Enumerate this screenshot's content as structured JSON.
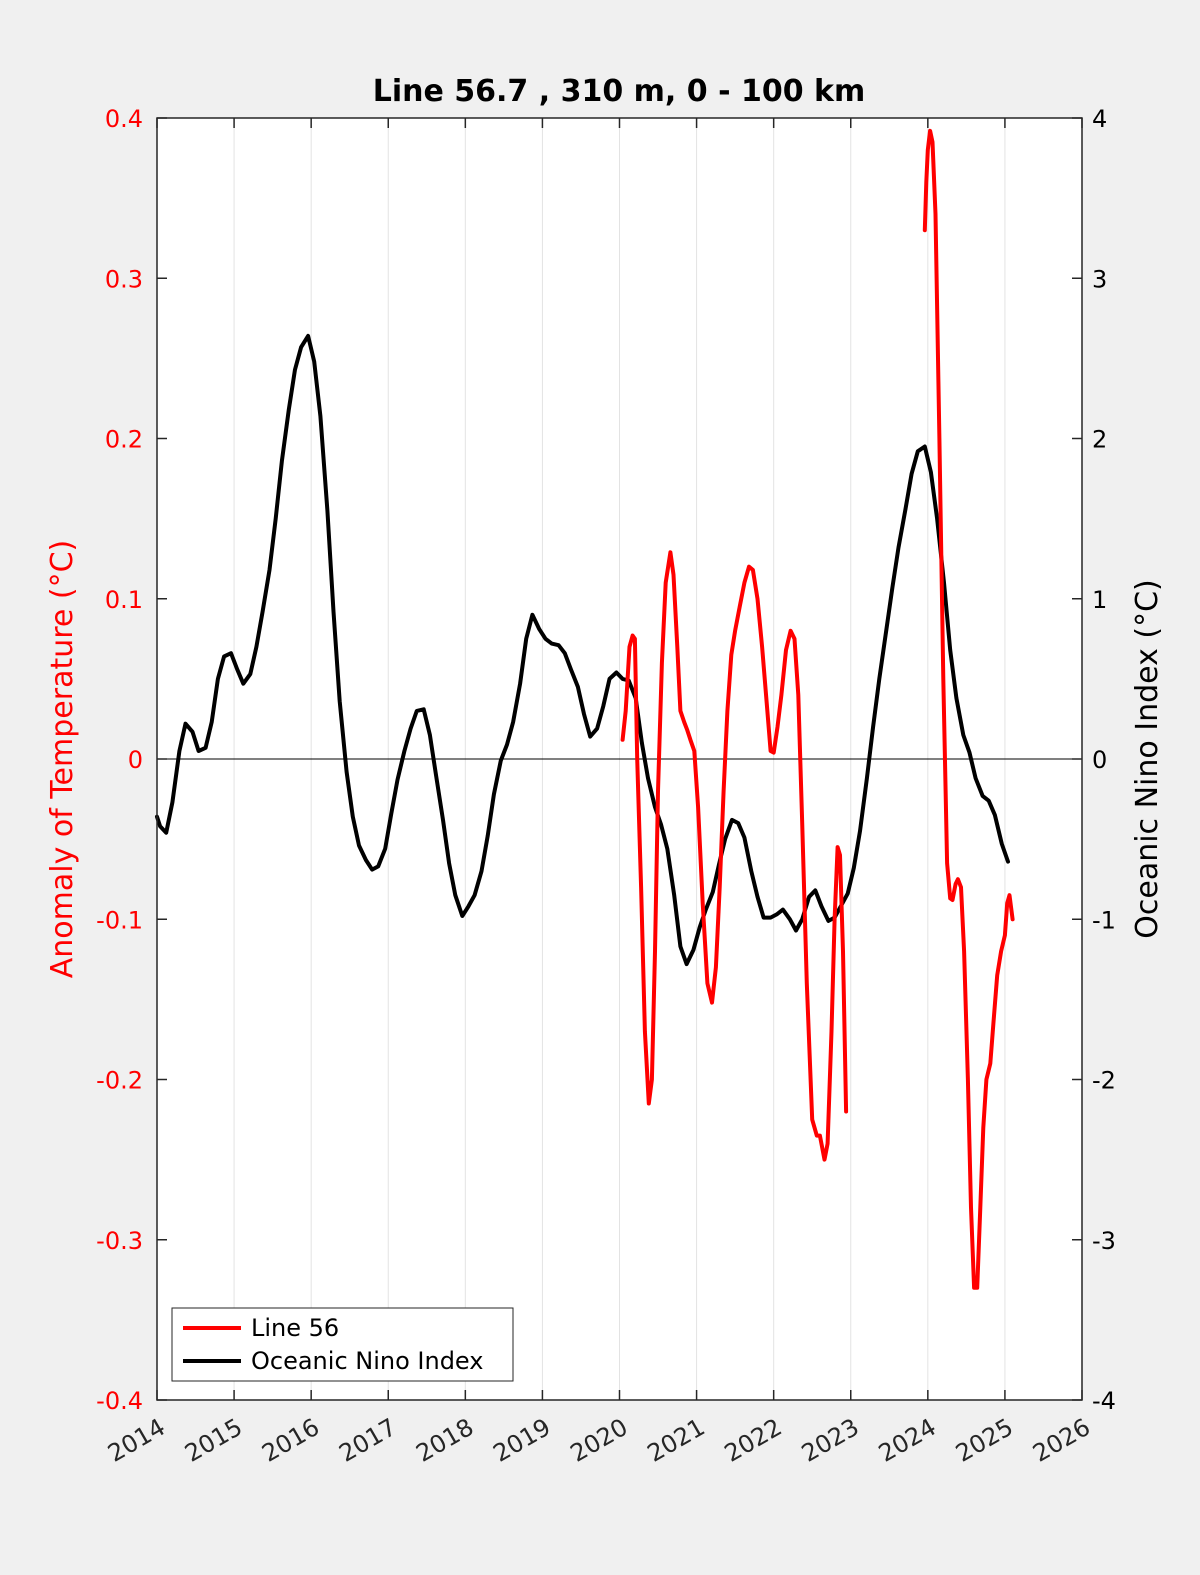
{
  "colors": {
    "background": "#f0f0f0",
    "plot_bg": "#ffffff",
    "line56": "#ff0000",
    "oni": "#000000",
    "left_axis": "#ff0000",
    "right_axis": "#000000",
    "grid": "#e3e3e3"
  },
  "chart_data": {
    "type": "line",
    "title": "Line 56.7 , 310 m, 0 - 100 km",
    "ylabel": "Anomaly of Temperature (°C)",
    "ylabel_right": "Oceanic Nino Index (°C)",
    "xlim": [
      2014,
      2026
    ],
    "ylim": [
      -0.4,
      0.4
    ],
    "ylim_right": [
      -4,
      4
    ],
    "x_ticks": [
      2014,
      2015,
      2016,
      2017,
      2018,
      2019,
      2020,
      2021,
      2022,
      2023,
      2024,
      2025,
      2026
    ],
    "x_tick_labels": [
      "2014",
      "2015",
      "2016",
      "2017",
      "2018",
      "2019",
      "2020",
      "2021",
      "2022",
      "2023",
      "2024",
      "2025",
      "2026"
    ],
    "y_tick_labels": [
      "0.4",
      "0.3",
      "0.2",
      "0.1",
      "0",
      "-0.1",
      "-0.2",
      "-0.3",
      "-0.4"
    ],
    "y_ticks": [
      0.4,
      0.3,
      0.2,
      0.1,
      0,
      -0.1,
      -0.2,
      -0.3,
      -0.4
    ],
    "y_right_tick_labels": [
      "4",
      "3",
      "2",
      "1",
      "0",
      "-1",
      "-2",
      "-3",
      "-4"
    ],
    "y_right_ticks": [
      4,
      3,
      2,
      1,
      0,
      -1,
      -2,
      -3,
      -4
    ],
    "grid": "vertical",
    "zero_line": true,
    "legend_position": "bottom-left",
    "series": [
      {
        "name": "Line 56",
        "axis": "left",
        "color": "#ff0000",
        "segments": [
          [
            [
              2020.04,
              0.012
            ],
            [
              2020.08,
              0.03
            ],
            [
              2020.13,
              0.07
            ],
            [
              2020.17,
              0.077
            ],
            [
              2020.2,
              0.075
            ],
            [
              2020.23,
              0.0
            ],
            [
              2020.28,
              -0.08
            ],
            [
              2020.33,
              -0.17
            ],
            [
              2020.38,
              -0.215
            ],
            [
              2020.42,
              -0.2
            ],
            [
              2020.46,
              -0.12
            ],
            [
              2020.5,
              -0.02
            ],
            [
              2020.55,
              0.06
            ],
            [
              2020.6,
              0.11
            ],
            [
              2020.66,
              0.129
            ],
            [
              2020.7,
              0.115
            ],
            [
              2020.75,
              0.07
            ],
            [
              2020.79,
              0.03
            ],
            [
              2020.84,
              0.023
            ],
            [
              2020.88,
              0.018
            ],
            [
              2020.92,
              0.012
            ],
            [
              2020.97,
              0.005
            ],
            [
              2021.02,
              -0.03
            ],
            [
              2021.08,
              -0.09
            ],
            [
              2021.14,
              -0.14
            ],
            [
              2021.2,
              -0.152
            ],
            [
              2021.25,
              -0.13
            ],
            [
              2021.3,
              -0.08
            ],
            [
              2021.35,
              -0.02
            ],
            [
              2021.4,
              0.03
            ],
            [
              2021.45,
              0.065
            ],
            [
              2021.5,
              0.08
            ],
            [
              2021.56,
              0.095
            ],
            [
              2021.62,
              0.11
            ],
            [
              2021.68,
              0.12
            ],
            [
              2021.73,
              0.118
            ],
            [
              2021.79,
              0.1
            ],
            [
              2021.85,
              0.07
            ],
            [
              2021.91,
              0.035
            ],
            [
              2021.96,
              0.005
            ],
            [
              2022.0,
              0.004
            ],
            [
              2022.05,
              0.02
            ],
            [
              2022.1,
              0.04
            ],
            [
              2022.16,
              0.068
            ],
            [
              2022.22,
              0.08
            ],
            [
              2022.27,
              0.075
            ],
            [
              2022.32,
              0.04
            ],
            [
              2022.37,
              -0.04
            ],
            [
              2022.43,
              -0.14
            ],
            [
              2022.5,
              -0.225
            ],
            [
              2022.56,
              -0.235
            ],
            [
              2022.6,
              -0.235
            ],
            [
              2022.66,
              -0.25
            ],
            [
              2022.7,
              -0.24
            ],
            [
              2022.75,
              -0.17
            ],
            [
              2022.79,
              -0.1
            ],
            [
              2022.83,
              -0.055
            ],
            [
              2022.86,
              -0.06
            ],
            [
              2022.9,
              -0.12
            ],
            [
              2022.94,
              -0.22
            ]
          ],
          [
            [
              2023.96,
              0.33
            ],
            [
              2023.98,
              0.36
            ],
            [
              2024.0,
              0.38
            ],
            [
              2024.03,
              0.392
            ],
            [
              2024.06,
              0.385
            ],
            [
              2024.1,
              0.34
            ],
            [
              2024.15,
              0.2
            ],
            [
              2024.2,
              0.05
            ],
            [
              2024.25,
              -0.065
            ],
            [
              2024.29,
              -0.087
            ],
            [
              2024.32,
              -0.088
            ],
            [
              2024.36,
              -0.078
            ],
            [
              2024.39,
              -0.075
            ],
            [
              2024.43,
              -0.08
            ],
            [
              2024.47,
              -0.12
            ],
            [
              2024.52,
              -0.2
            ],
            [
              2024.56,
              -0.28
            ],
            [
              2024.6,
              -0.33
            ],
            [
              2024.64,
              -0.33
            ],
            [
              2024.68,
              -0.28
            ],
            [
              2024.72,
              -0.23
            ],
            [
              2024.76,
              -0.2
            ],
            [
              2024.81,
              -0.19
            ],
            [
              2024.85,
              -0.165
            ],
            [
              2024.9,
              -0.135
            ],
            [
              2024.95,
              -0.12
            ],
            [
              2025.0,
              -0.11
            ],
            [
              2025.03,
              -0.09
            ],
            [
              2025.06,
              -0.085
            ],
            [
              2025.1,
              -0.1
            ]
          ]
        ]
      },
      {
        "name": "Oceanic Nino Index",
        "axis": "right",
        "color": "#000000",
        "segments": [
          [
            [
              2014.0,
              -0.36
            ],
            [
              2014.04,
              -0.42
            ],
            [
              2014.12,
              -0.46
            ],
            [
              2014.2,
              -0.27
            ],
            [
              2014.29,
              0.05
            ],
            [
              2014.37,
              0.22
            ],
            [
              2014.46,
              0.17
            ],
            [
              2014.54,
              0.05
            ],
            [
              2014.63,
              0.07
            ],
            [
              2014.71,
              0.23
            ],
            [
              2014.79,
              0.5
            ],
            [
              2014.87,
              0.64
            ],
            [
              2014.96,
              0.66
            ],
            [
              2015.04,
              0.56
            ],
            [
              2015.12,
              0.47
            ],
            [
              2015.21,
              0.53
            ],
            [
              2015.29,
              0.7
            ],
            [
              2015.37,
              0.92
            ],
            [
              2015.46,
              1.18
            ],
            [
              2015.54,
              1.5
            ],
            [
              2015.62,
              1.86
            ],
            [
              2015.71,
              2.18
            ],
            [
              2015.79,
              2.43
            ],
            [
              2015.87,
              2.57
            ],
            [
              2015.96,
              2.64
            ],
            [
              2016.04,
              2.48
            ],
            [
              2016.12,
              2.14
            ],
            [
              2016.21,
              1.55
            ],
            [
              2016.29,
              0.92
            ],
            [
              2016.37,
              0.36
            ],
            [
              2016.46,
              -0.08
            ],
            [
              2016.54,
              -0.36
            ],
            [
              2016.62,
              -0.54
            ],
            [
              2016.71,
              -0.63
            ],
            [
              2016.79,
              -0.69
            ],
            [
              2016.87,
              -0.67
            ],
            [
              2016.96,
              -0.56
            ],
            [
              2017.04,
              -0.34
            ],
            [
              2017.12,
              -0.13
            ],
            [
              2017.21,
              0.05
            ],
            [
              2017.29,
              0.19
            ],
            [
              2017.37,
              0.3
            ],
            [
              2017.46,
              0.31
            ],
            [
              2017.54,
              0.15
            ],
            [
              2017.62,
              -0.1
            ],
            [
              2017.71,
              -0.38
            ],
            [
              2017.79,
              -0.65
            ],
            [
              2017.87,
              -0.85
            ],
            [
              2017.96,
              -0.98
            ],
            [
              2018.04,
              -0.92
            ],
            [
              2018.12,
              -0.85
            ],
            [
              2018.21,
              -0.7
            ],
            [
              2018.29,
              -0.48
            ],
            [
              2018.37,
              -0.22
            ],
            [
              2018.46,
              -0.01
            ],
            [
              2018.54,
              0.09
            ],
            [
              2018.62,
              0.23
            ],
            [
              2018.71,
              0.47
            ],
            [
              2018.79,
              0.75
            ],
            [
              2018.87,
              0.9
            ],
            [
              2018.96,
              0.81
            ],
            [
              2019.04,
              0.75
            ],
            [
              2019.12,
              0.72
            ],
            [
              2019.21,
              0.71
            ],
            [
              2019.29,
              0.66
            ],
            [
              2019.37,
              0.56
            ],
            [
              2019.46,
              0.45
            ],
            [
              2019.54,
              0.28
            ],
            [
              2019.62,
              0.14
            ],
            [
              2019.71,
              0.19
            ],
            [
              2019.79,
              0.33
            ],
            [
              2019.87,
              0.5
            ],
            [
              2019.96,
              0.54
            ],
            [
              2020.04,
              0.5
            ],
            [
              2020.12,
              0.49
            ],
            [
              2020.21,
              0.38
            ],
            [
              2020.29,
              0.1
            ],
            [
              2020.37,
              -0.12
            ],
            [
              2020.46,
              -0.3
            ],
            [
              2020.54,
              -0.41
            ],
            [
              2020.62,
              -0.56
            ],
            [
              2020.71,
              -0.85
            ],
            [
              2020.79,
              -1.17
            ],
            [
              2020.87,
              -1.28
            ],
            [
              2020.96,
              -1.19
            ],
            [
              2021.04,
              -1.05
            ],
            [
              2021.12,
              -0.94
            ],
            [
              2021.21,
              -0.83
            ],
            [
              2021.29,
              -0.66
            ],
            [
              2021.37,
              -0.5
            ],
            [
              2021.46,
              -0.38
            ],
            [
              2021.54,
              -0.4
            ],
            [
              2021.62,
              -0.49
            ],
            [
              2021.71,
              -0.7
            ],
            [
              2021.79,
              -0.86
            ],
            [
              2021.87,
              -0.99
            ],
            [
              2021.96,
              -0.99
            ],
            [
              2022.04,
              -0.97
            ],
            [
              2022.12,
              -0.94
            ],
            [
              2022.21,
              -1.0
            ],
            [
              2022.29,
              -1.07
            ],
            [
              2022.37,
              -1.0
            ],
            [
              2022.46,
              -0.86
            ],
            [
              2022.54,
              -0.82
            ],
            [
              2022.62,
              -0.92
            ],
            [
              2022.71,
              -1.01
            ],
            [
              2022.79,
              -0.99
            ],
            [
              2022.87,
              -0.92
            ],
            [
              2022.96,
              -0.84
            ],
            [
              2023.04,
              -0.68
            ],
            [
              2023.12,
              -0.45
            ],
            [
              2023.21,
              -0.12
            ],
            [
              2023.29,
              0.2
            ],
            [
              2023.37,
              0.5
            ],
            [
              2023.46,
              0.8
            ],
            [
              2023.54,
              1.07
            ],
            [
              2023.62,
              1.32
            ],
            [
              2023.71,
              1.56
            ],
            [
              2023.79,
              1.78
            ],
            [
              2023.87,
              1.92
            ],
            [
              2023.96,
              1.95
            ],
            [
              2024.04,
              1.79
            ],
            [
              2024.12,
              1.5
            ],
            [
              2024.21,
              1.1
            ],
            [
              2024.29,
              0.68
            ],
            [
              2024.37,
              0.38
            ],
            [
              2024.46,
              0.15
            ],
            [
              2024.54,
              0.04
            ],
            [
              2024.62,
              -0.12
            ],
            [
              2024.71,
              -0.23
            ],
            [
              2024.79,
              -0.26
            ],
            [
              2024.87,
              -0.35
            ],
            [
              2024.96,
              -0.53
            ],
            [
              2025.04,
              -0.64
            ]
          ]
        ]
      }
    ]
  },
  "legend": [
    {
      "label": "Line 56",
      "color": "#ff0000"
    },
    {
      "label": "Oceanic Nino Index",
      "color": "#000000"
    }
  ]
}
